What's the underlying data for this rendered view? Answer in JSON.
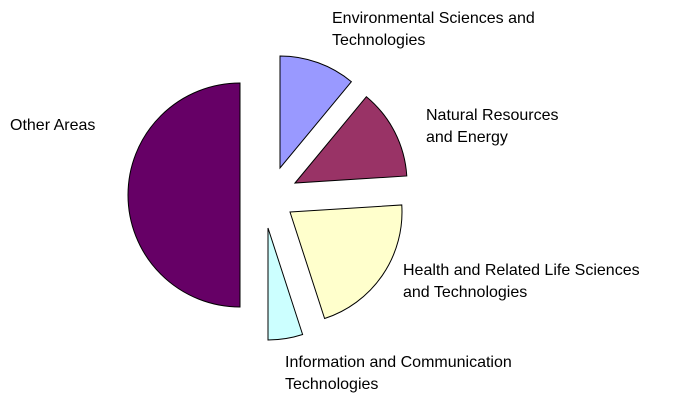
{
  "chart_data": {
    "type": "pie",
    "categories": [
      "Environmental Sciences and Technologies",
      "Natural Resources and Energy",
      "Health and Related Life Sciences and Technologies",
      "Information and Communication Technologies",
      "Other Areas"
    ],
    "values": [
      11,
      13,
      21,
      5,
      50
    ],
    "colors": [
      "#9999ff",
      "#993366",
      "#ffffcc",
      "#ccffff",
      "#660066"
    ]
  }
}
